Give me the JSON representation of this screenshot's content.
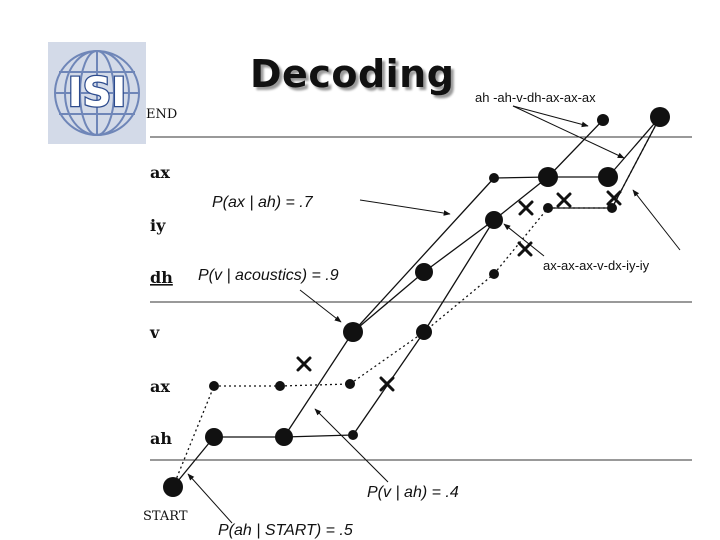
{
  "title": "Decoding",
  "logo": {
    "text": "ISI"
  },
  "states": {
    "end": "END",
    "start": "START"
  },
  "row_labels": [
    "ax",
    "iy",
    "dh",
    "v",
    "ax",
    "ah"
  ],
  "annotations": {
    "p_ax_ah": "P(ax | ah) = .7",
    "p_v_acoustics": "P(v | acoustics) = .9",
    "p_v_ah": "P(v | ah) = .4",
    "p_ah_start": "P(ah | START) = .5"
  },
  "sequences": {
    "top": "ah -ah-v-dh-ax-ax-ax",
    "bottom": "ax-ax-ax-v-dx-iy-iy"
  }
}
